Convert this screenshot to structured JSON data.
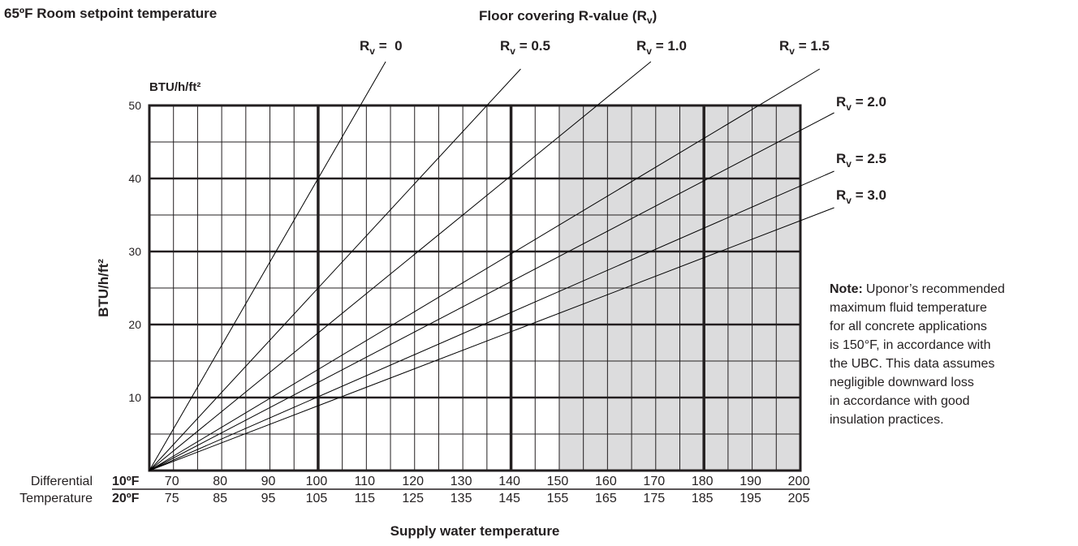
{
  "chart_data": {
    "type": "line",
    "title": "65ºF Room setpoint temperature",
    "legend_title": "Floor covering R-value (Rv)",
    "y_unit_top": "BTU/h/ft²",
    "y_label": "BTU/h/ft²",
    "x_label": "Supply water temperature",
    "row_title": [
      "Differential",
      "Temperature"
    ],
    "row_names": [
      "10ºF",
      "20ºF"
    ],
    "xlim": [
      65,
      200
    ],
    "xticks": [
      70,
      80,
      90,
      100,
      110,
      120,
      130,
      140,
      150,
      160,
      170,
      180,
      190,
      200
    ],
    "x2lim": [
      70,
      205
    ],
    "x2ticks": [
      75,
      85,
      95,
      105,
      115,
      125,
      135,
      145,
      155,
      165,
      175,
      185,
      195,
      205
    ],
    "xminor_grid": [
      75,
      85,
      95,
      105,
      115,
      125,
      135,
      145,
      155,
      165,
      175,
      185,
      195
    ],
    "xmajor_grid": [
      100,
      140,
      180
    ],
    "ylim": [
      0,
      50
    ],
    "yticks": [
      10,
      20,
      30,
      40,
      50
    ],
    "yminor_grid": [
      5,
      15,
      25,
      35,
      45
    ],
    "shaded_xrange": [
      150,
      200
    ],
    "shade_color": "#dcdcdd",
    "series": [
      {
        "name": "Rv =  0",
        "color": "#000000",
        "x": [
          65,
          114
        ],
        "values": [
          0,
          56
        ]
      },
      {
        "name": "Rv = 0.5",
        "color": "#000000",
        "x": [
          65,
          142
        ],
        "values": [
          0,
          55
        ]
      },
      {
        "name": "Rv = 1.0",
        "color": "#000000",
        "x": [
          65,
          169
        ],
        "values": [
          0,
          56
        ]
      },
      {
        "name": "Rv = 1.5",
        "color": "#000000",
        "x": [
          65,
          204
        ],
        "values": [
          0,
          55
        ]
      },
      {
        "name": "Rv = 2.0",
        "color": "#000000",
        "x": [
          65,
          207
        ],
        "values": [
          0,
          49
        ]
      },
      {
        "name": "Rv = 2.5",
        "color": "#000000",
        "x": [
          65,
          207
        ],
        "values": [
          0,
          41
        ]
      },
      {
        "name": "Rv = 3.0",
        "color": "#000000",
        "x": [
          65,
          207
        ],
        "values": [
          0,
          36
        ]
      }
    ],
    "note_label": "Note:",
    "note_lines": [
      "Uponor’s recommended",
      "maximum fluid temperature",
      "for all concrete applications",
      "is 150°F, in accordance with",
      "the UBC. This data assumes",
      "negligible downward loss",
      "in accordance with good",
      "insulation practices."
    ]
  }
}
